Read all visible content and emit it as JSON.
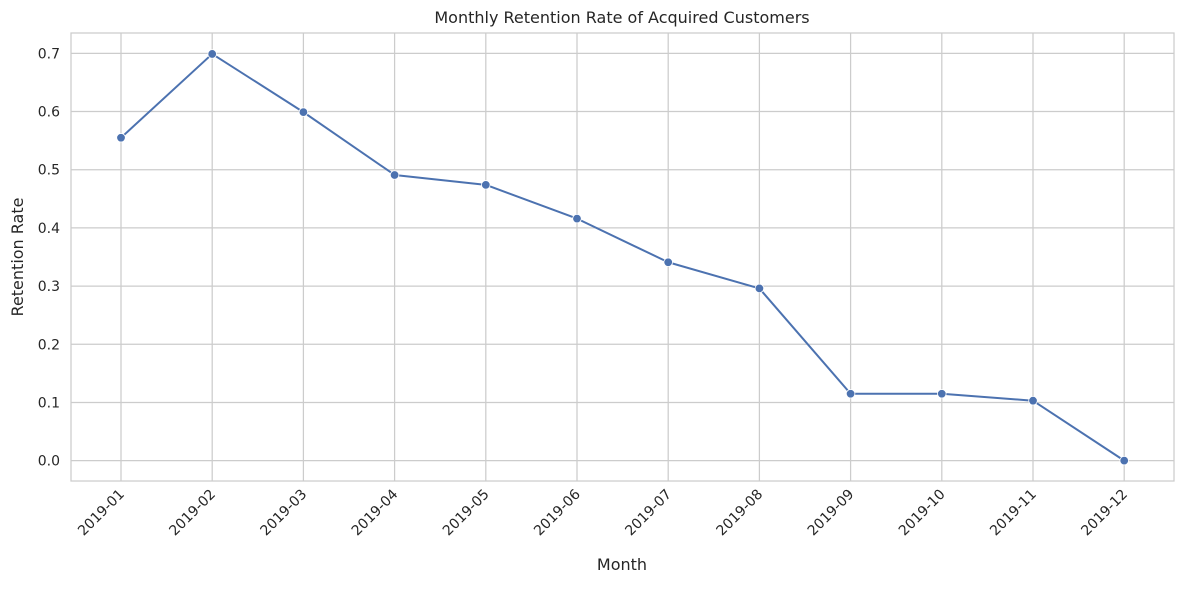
{
  "chart_data": {
    "type": "line",
    "title": "Monthly Retention Rate of Acquired Customers",
    "xlabel": "Month",
    "ylabel": "Retention Rate",
    "categories": [
      "2019-01",
      "2019-02",
      "2019-03",
      "2019-04",
      "2019-05",
      "2019-06",
      "2019-07",
      "2019-08",
      "2019-09",
      "2019-10",
      "2019-11",
      "2019-12"
    ],
    "series": [
      {
        "values": [
          0.555,
          0.699,
          0.599,
          0.491,
          0.474,
          0.416,
          0.341,
          0.296,
          0.115,
          0.115,
          0.103,
          0.0
        ]
      }
    ],
    "ylim": [
      -0.035,
      0.735
    ],
    "yticks": [
      "0.0",
      "0.1",
      "0.2",
      "0.3",
      "0.4",
      "0.5",
      "0.6",
      "0.7"
    ],
    "grid": true,
    "legend": "none",
    "colors": {
      "line": "#4c72b0",
      "grid": "#cccccc",
      "axis": "#cccccc",
      "text": "#262626"
    }
  }
}
